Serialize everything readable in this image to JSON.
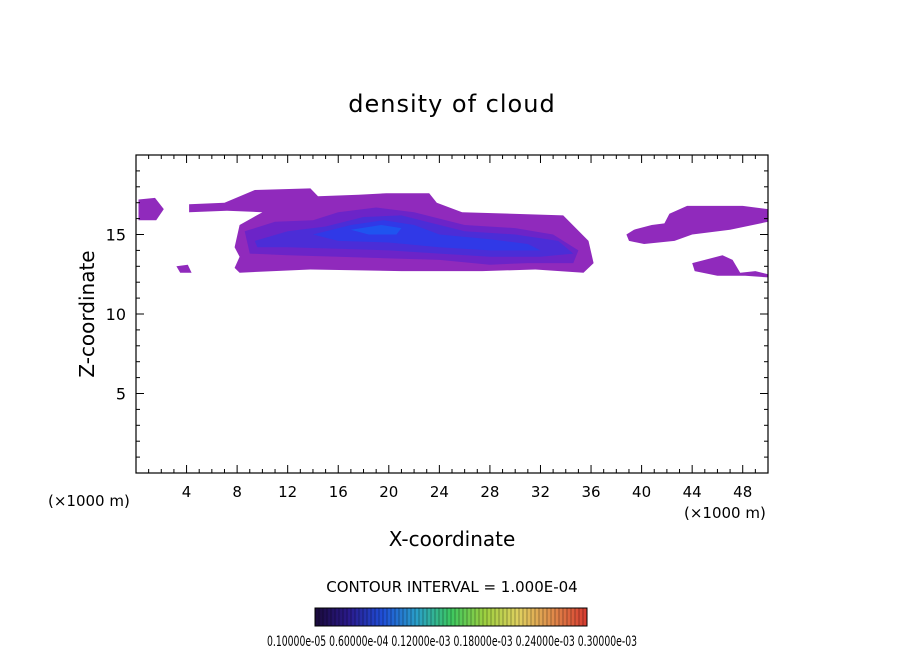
{
  "chart_data": {
    "type": "heatmap",
    "title": "density of cloud",
    "xlabel": "X-coordinate",
    "ylabel": "Z-coordinate",
    "x_unit_left": "(×1000 m)",
    "x_unit_right": "(×1000 m)",
    "xlim": [
      0,
      50
    ],
    "ylim": [
      0,
      20
    ],
    "x_ticks": [
      4,
      8,
      12,
      16,
      20,
      24,
      28,
      32,
      36,
      40,
      44,
      48
    ],
    "y_ticks": [
      5,
      10,
      15
    ],
    "contour_interval_label": "CONTOUR INTERVAL = 1.000E-04",
    "colorbar_labels": "0.10000e-05 0.60000e-04 0.12000e-03 0.18000e-03 0.24000e-03 0.30000e-03",
    "colorbar_colors": [
      "#1a0a3a",
      "#2a1a8c",
      "#1f4fd8",
      "#2aa0c8",
      "#3cc860",
      "#9ed040",
      "#e0d060",
      "#e08a4a",
      "#d83a30"
    ],
    "cloud_fill_colors": [
      "#8a1fb8",
      "#6a24c8",
      "#4a2ed8",
      "#2e3ae8",
      "#1f55f0"
    ],
    "cloud_regions": [
      {
        "level": 0,
        "points": [
          [
            0.2,
            17.2
          ],
          [
            1.5,
            17.3
          ],
          [
            2.2,
            16.6
          ],
          [
            1.6,
            15.9
          ],
          [
            0.2,
            15.9
          ]
        ]
      },
      {
        "level": 0,
        "points": [
          [
            4.2,
            16.9
          ],
          [
            7.0,
            17.0
          ],
          [
            9.4,
            17.8
          ],
          [
            13.8,
            17.9
          ],
          [
            14.4,
            17.4
          ],
          [
            17.6,
            17.5
          ],
          [
            19.8,
            17.6
          ],
          [
            23.2,
            17.6
          ],
          [
            23.8,
            17.0
          ],
          [
            25.8,
            16.4
          ],
          [
            33.8,
            16.2
          ],
          [
            35.8,
            14.6
          ],
          [
            36.2,
            13.2
          ],
          [
            35.4,
            12.6
          ],
          [
            31.6,
            12.8
          ],
          [
            27.4,
            12.7
          ],
          [
            21.0,
            12.7
          ],
          [
            13.8,
            12.8
          ],
          [
            8.2,
            12.6
          ],
          [
            7.8,
            12.9
          ],
          [
            8.2,
            13.6
          ],
          [
            7.8,
            14.2
          ],
          [
            8.2,
            15.6
          ],
          [
            10.0,
            16.4
          ],
          [
            7.2,
            16.5
          ],
          [
            4.2,
            16.4
          ]
        ]
      },
      {
        "level": 0,
        "points": [
          [
            3.2,
            13.0
          ],
          [
            4.1,
            13.1
          ],
          [
            4.4,
            12.6
          ],
          [
            3.5,
            12.6
          ]
        ]
      },
      {
        "level": 0,
        "points": [
          [
            38.8,
            15.0
          ],
          [
            39.4,
            15.3
          ],
          [
            40.8,
            15.6
          ],
          [
            41.8,
            15.7
          ],
          [
            42.2,
            16.3
          ],
          [
            43.6,
            16.8
          ],
          [
            48.0,
            16.8
          ],
          [
            50.0,
            16.6
          ],
          [
            50.0,
            15.8
          ],
          [
            47.0,
            15.3
          ],
          [
            44.0,
            15.0
          ],
          [
            42.6,
            14.6
          ],
          [
            40.2,
            14.4
          ],
          [
            39.0,
            14.6
          ]
        ]
      },
      {
        "level": 0,
        "points": [
          [
            44.0,
            13.2
          ],
          [
            45.0,
            13.4
          ],
          [
            46.4,
            13.7
          ],
          [
            47.2,
            13.4
          ],
          [
            47.8,
            12.6
          ],
          [
            49.0,
            12.7
          ],
          [
            50.0,
            12.5
          ],
          [
            50.0,
            12.3
          ],
          [
            48.2,
            12.4
          ],
          [
            46.0,
            12.4
          ],
          [
            44.2,
            12.7
          ]
        ]
      },
      {
        "level": 1,
        "points": [
          [
            8.6,
            15.2
          ],
          [
            11.0,
            15.8
          ],
          [
            14.0,
            15.9
          ],
          [
            16.0,
            16.4
          ],
          [
            19.0,
            16.7
          ],
          [
            22.0,
            16.4
          ],
          [
            26.0,
            15.6
          ],
          [
            30.0,
            15.4
          ],
          [
            33.0,
            15.0
          ],
          [
            35.0,
            14.0
          ],
          [
            34.6,
            13.2
          ],
          [
            31.0,
            13.2
          ],
          [
            28.0,
            13.1
          ],
          [
            24.0,
            13.4
          ],
          [
            20.0,
            13.5
          ],
          [
            16.0,
            13.6
          ],
          [
            12.0,
            13.7
          ],
          [
            9.0,
            13.8
          ]
        ]
      },
      {
        "level": 2,
        "points": [
          [
            9.4,
            14.6
          ],
          [
            12.0,
            15.2
          ],
          [
            15.0,
            15.5
          ],
          [
            18.0,
            16.1
          ],
          [
            21.0,
            16.2
          ],
          [
            23.0,
            15.8
          ],
          [
            26.0,
            15.2
          ],
          [
            30.0,
            15.0
          ],
          [
            33.4,
            14.6
          ],
          [
            34.6,
            13.8
          ],
          [
            32.0,
            13.6
          ],
          [
            28.0,
            13.6
          ],
          [
            24.0,
            13.8
          ],
          [
            20.0,
            14.0
          ],
          [
            16.0,
            14.1
          ],
          [
            12.0,
            14.2
          ],
          [
            9.6,
            14.2
          ]
        ]
      },
      {
        "level": 3,
        "points": [
          [
            14.0,
            15.0
          ],
          [
            17.0,
            15.6
          ],
          [
            19.6,
            15.9
          ],
          [
            22.0,
            15.6
          ],
          [
            24.0,
            15.0
          ],
          [
            28.0,
            14.7
          ],
          [
            31.0,
            14.4
          ],
          [
            32.0,
            14.0
          ],
          [
            28.0,
            14.0
          ],
          [
            24.0,
            14.2
          ],
          [
            20.0,
            14.5
          ],
          [
            16.0,
            14.6
          ]
        ]
      },
      {
        "level": 4,
        "points": [
          [
            17.0,
            15.3
          ],
          [
            19.4,
            15.6
          ],
          [
            21.0,
            15.4
          ],
          [
            20.6,
            15.0
          ],
          [
            18.4,
            15.0
          ]
        ]
      }
    ]
  }
}
